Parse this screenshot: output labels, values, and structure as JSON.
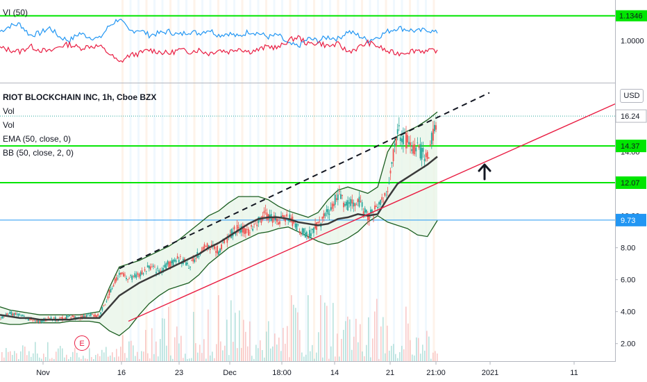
{
  "legend": {
    "vi_label": "VI (50)",
    "symbol": "RIOT BLOCKCHAIN INC, 1h, Cboe BZX",
    "vol1": "Vol",
    "vol2": "Vol",
    "ema": "EMA (50, close, 0)",
    "bb": "BB (50, close, 2, 0)"
  },
  "currency_button": "USD",
  "event_marker": "E",
  "chart_data": {
    "type": "candlestick",
    "symbol": "RIOT BLOCKCHAIN INC",
    "interval": "1h",
    "exchange": "Cboe BZX",
    "currency": "USD",
    "x_ticks": [
      "Nov",
      "16",
      "23",
      "Dec",
      "18:00",
      "14",
      "21",
      "21:00",
      "2021",
      "11"
    ],
    "price_ticks": [
      "2.00",
      "4.00",
      "6.00",
      "8.00",
      "10.00",
      "14.00",
      "16.00"
    ],
    "ylim": [
      0.9,
      18.2
    ],
    "price_axis_labels": [
      {
        "value": 16.24,
        "label": "16.24",
        "bg": "#ffffff",
        "fg": "#131722",
        "kind": "last-price"
      },
      {
        "value": 14.37,
        "label": "14.37",
        "bg": "#00e600",
        "fg": "#131722",
        "kind": "horizontal-line"
      },
      {
        "value": 12.07,
        "label": "12.07",
        "bg": "#00e600",
        "fg": "#131722",
        "kind": "horizontal-line"
      },
      {
        "value": 9.73,
        "label": "9.73",
        "bg": "#2196f3",
        "fg": "#ffffff",
        "kind": "horizontal-line"
      }
    ],
    "horizontal_lines": [
      {
        "value": 14.37,
        "color": "#00e600"
      },
      {
        "value": 12.07,
        "color": "#00e600"
      },
      {
        "value": 9.73,
        "color": "#2196f3"
      }
    ],
    "trend_lines": [
      {
        "name": "upper-dashed-trendline",
        "from": [
          0.0,
          6.7
        ],
        "to": [
          1.0,
          17.7
        ],
        "color": "#131722",
        "dash": true
      },
      {
        "name": "red-trendline",
        "from": [
          0.0,
          3.4
        ],
        "to": [
          1.0,
          17.0
        ],
        "color": "#e91e43",
        "dash": false
      }
    ],
    "close_series": [
      3.6,
      3.9,
      3.8,
      3.5,
      3.4,
      3.6,
      3.5,
      3.7,
      3.6,
      3.8,
      3.7,
      5.2,
      6.4,
      6.1,
      6.3,
      6.8,
      6.5,
      7.0,
      7.3,
      6.9,
      7.6,
      8.2,
      7.8,
      8.7,
      9.3,
      8.9,
      9.8,
      10.1,
      9.6,
      10.0,
      9.2,
      8.8,
      9.4,
      10.2,
      11.3,
      10.6,
      11.0,
      10.0,
      10.4,
      11.8,
      15.4,
      14.6,
      14.2,
      13.6,
      16.2
    ],
    "ema_series": [
      3.8,
      3.7,
      3.6,
      3.6,
      3.5,
      3.5,
      3.5,
      3.5,
      3.6,
      3.6,
      3.6,
      4.3,
      5.0,
      5.4,
      5.8,
      6.1,
      6.4,
      6.7,
      7.0,
      7.3,
      7.6,
      8.0,
      8.3,
      8.7,
      9.1,
      9.5,
      9.8,
      9.9,
      9.9,
      9.8,
      9.6,
      9.5,
      9.4,
      9.5,
      9.8,
      9.9,
      10.1,
      10.0,
      10.1,
      11.1,
      12.0,
      12.4,
      12.8,
      13.2,
      13.7
    ],
    "bb_upper": [
      4.3,
      4.1,
      4.0,
      3.9,
      3.8,
      3.8,
      3.8,
      3.8,
      3.8,
      3.9,
      4.0,
      5.5,
      6.8,
      7.0,
      7.2,
      7.5,
      7.8,
      8.1,
      8.5,
      9.0,
      9.5,
      10.0,
      10.3,
      10.8,
      11.2,
      11.2,
      11.2,
      11.0,
      10.6,
      10.3,
      10.1,
      9.9,
      10.2,
      11.0,
      11.6,
      11.8,
      11.6,
      11.4,
      11.8,
      14.0,
      15.0,
      15.3,
      15.6,
      16.0,
      16.5
    ],
    "bb_lower": [
      3.3,
      3.2,
      3.2,
      3.3,
      3.3,
      3.3,
      3.3,
      3.4,
      3.4,
      3.4,
      3.3,
      2.8,
      2.5,
      3.0,
      3.8,
      4.5,
      5.0,
      5.4,
      5.6,
      5.8,
      6.3,
      7.0,
      7.5,
      8.0,
      8.3,
      8.6,
      8.9,
      9.0,
      9.2,
      9.3,
      9.0,
      8.7,
      8.4,
      8.2,
      8.3,
      8.6,
      9.0,
      9.6,
      10.0,
      9.6,
      9.4,
      9.2,
      8.8,
      8.7,
      9.7
    ],
    "vi_levels": [
      {
        "value": 1.1346,
        "label": "1.1346"
      },
      {
        "value": 1.0,
        "label": "1.0000"
      }
    ],
    "vi_ylim": [
      0.78,
      1.22
    ],
    "vi_plus": [
      1.05,
      1.08,
      1.09,
      1.03,
      1.04,
      1.07,
      1.02,
      1.0,
      1.04,
      1.02,
      1.01,
      1.08,
      1.12,
      1.05,
      1.06,
      1.03,
      1.04,
      1.05,
      1.03,
      1.05,
      1.04,
      1.06,
      1.03,
      1.04,
      1.02,
      1.05,
      1.04,
      1.02,
      1.03,
      0.98,
      0.97,
      1.01,
      1.0,
      1.02,
      1.01,
      1.05,
      1.03,
      1.0,
      1.02,
      1.05,
      1.07,
      1.06,
      1.05,
      1.06,
      1.04
    ],
    "vi_minus": [
      0.96,
      0.95,
      0.94,
      0.97,
      0.95,
      0.94,
      0.97,
      0.98,
      0.96,
      0.97,
      0.97,
      0.93,
      0.88,
      0.92,
      0.93,
      0.95,
      0.94,
      0.93,
      0.95,
      0.94,
      0.95,
      0.93,
      0.95,
      0.94,
      0.96,
      0.94,
      0.95,
      0.97,
      0.96,
      1.0,
      1.02,
      0.98,
      0.99,
      0.97,
      0.98,
      0.94,
      0.96,
      0.99,
      0.97,
      0.94,
      0.93,
      0.94,
      0.95,
      0.94,
      0.95
    ],
    "colors": {
      "up": "#26a69a",
      "down": "#ef5350",
      "ema": "#3a3a3a",
      "bb_band": "#1b5e20",
      "bb_basis": "#e91e43",
      "bb_fill": "#e8f5e9",
      "vi_plus": "#2196f3",
      "vi_minus": "#e91e43",
      "green_level": "#00e600",
      "blue_level": "#2196f3"
    }
  }
}
